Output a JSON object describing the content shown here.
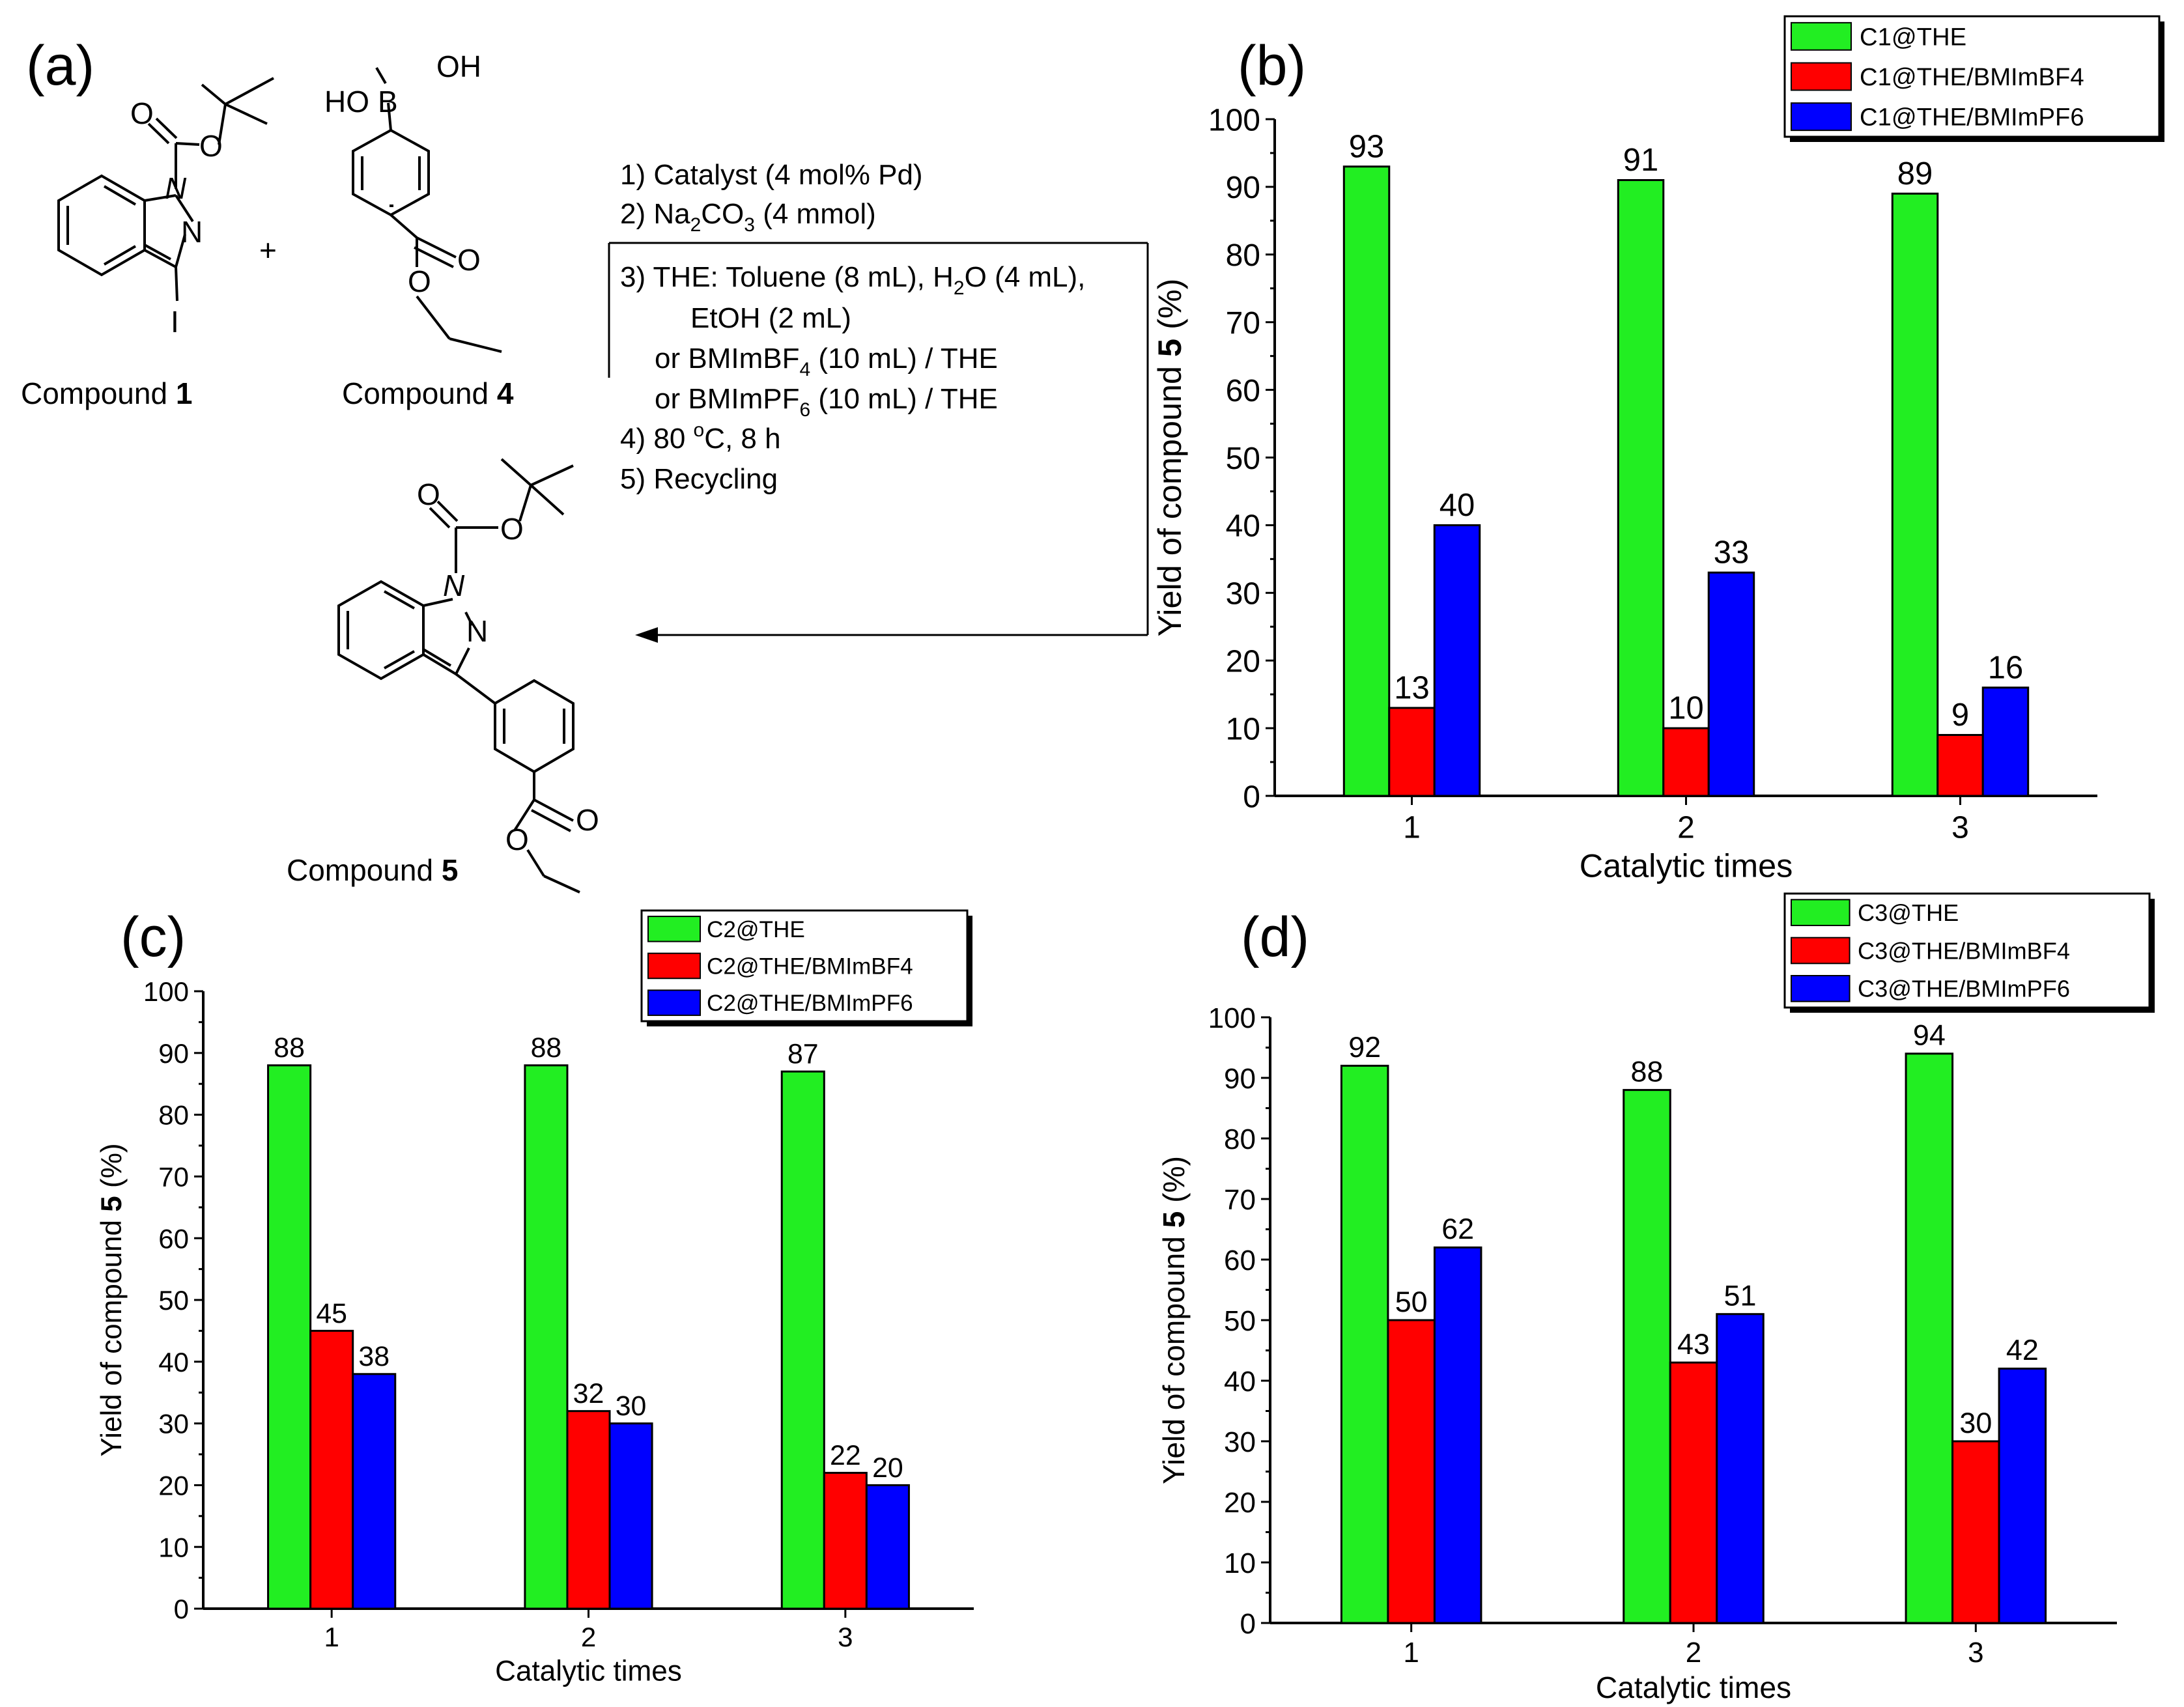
{
  "panels": {
    "a": {
      "label": "(a)",
      "compound_prefix": "Compound",
      "compound1_number": "1",
      "compound4_number": "4",
      "compound5_number": "5",
      "plus": "+",
      "atoms": {
        "O": "O",
        "N": "N",
        "I": "I",
        "OH": "OH",
        "HO": "HO",
        "B": "B"
      },
      "conditions": {
        "step1": "1) Catalyst (4 mol% Pd)",
        "step2_pre": "2) Na",
        "step2_sub": "2",
        "step2_mid": "CO",
        "step2_sub2": "3",
        "step2_post": " (4 mmol)",
        "step3_line1_pre": "3) THE: Toluene (8 mL), H",
        "step3_line1_sub": "2",
        "step3_line1_post": "O (4 mL),",
        "step3_line2": "EtOH (2 mL)",
        "step3_line3_pre": "or BMImBF",
        "step3_line3_sub": "4",
        "step3_line3_post": " (10 mL) / THE",
        "step3_line4_pre": "or BMImPF",
        "step3_line4_sub": "6",
        "step3_line4_post": " (10 mL) / THE",
        "step4_pre": "4) 80 ",
        "step4_sup": "o",
        "step4_post": "C, 8 h",
        "step5": "5) Recycling"
      }
    }
  },
  "colors": {
    "green": "#22ee22",
    "red": "#ff0000",
    "blue": "#0000ff"
  },
  "chart_data": [
    {
      "panel": "(b)",
      "type": "bar",
      "categories": [
        "1",
        "2",
        "3"
      ],
      "series": [
        {
          "name": "C1@THE",
          "values": [
            93,
            91,
            89
          ]
        },
        {
          "name": "C1@THE/BMImBF4",
          "values": [
            13,
            10,
            9
          ]
        },
        {
          "name": "C1@THE/BMImPF6",
          "values": [
            40,
            33,
            16
          ]
        }
      ],
      "xlabel": "Catalytic times",
      "ylabel_pre": "Yield of compound ",
      "ylabel_bold": "5",
      "ylabel_post": " (%)",
      "ylim": [
        0,
        100
      ],
      "yticks": [
        "0",
        "10",
        "20",
        "30",
        "40",
        "50",
        "60",
        "70",
        "80",
        "90",
        "100"
      ],
      "legend_position": "top-right"
    },
    {
      "panel": "(c)",
      "type": "bar",
      "categories": [
        "1",
        "2",
        "3"
      ],
      "series": [
        {
          "name": "C2@THE",
          "values": [
            88,
            88,
            87
          ]
        },
        {
          "name": "C2@THE/BMImBF4",
          "values": [
            45,
            32,
            22
          ]
        },
        {
          "name": "C2@THE/BMImPF6",
          "values": [
            38,
            30,
            20
          ]
        }
      ],
      "xlabel": "Catalytic times",
      "ylabel_pre": "Yield of compound ",
      "ylabel_bold": "5",
      "ylabel_post": " (%)",
      "ylim": [
        0,
        100
      ],
      "yticks": [
        "0",
        "10",
        "20",
        "30",
        "40",
        "50",
        "60",
        "70",
        "80",
        "90",
        "100"
      ],
      "legend_position": "top-right"
    },
    {
      "panel": "(d)",
      "type": "bar",
      "categories": [
        "1",
        "2",
        "3"
      ],
      "series": [
        {
          "name": "C3@THE",
          "values": [
            92,
            88,
            94
          ]
        },
        {
          "name": "C3@THE/BMImBF4",
          "values": [
            50,
            43,
            30
          ]
        },
        {
          "name": "C3@THE/BMImPF6",
          "values": [
            62,
            51,
            42
          ]
        }
      ],
      "xlabel": "Catalytic times",
      "ylabel_pre": "Yield of compound ",
      "ylabel_bold": "5",
      "ylabel_post": " (%)",
      "ylim": [
        0,
        100
      ],
      "yticks": [
        "0",
        "10",
        "20",
        "30",
        "40",
        "50",
        "60",
        "70",
        "80",
        "90",
        "100"
      ],
      "legend_position": "top-right"
    }
  ]
}
